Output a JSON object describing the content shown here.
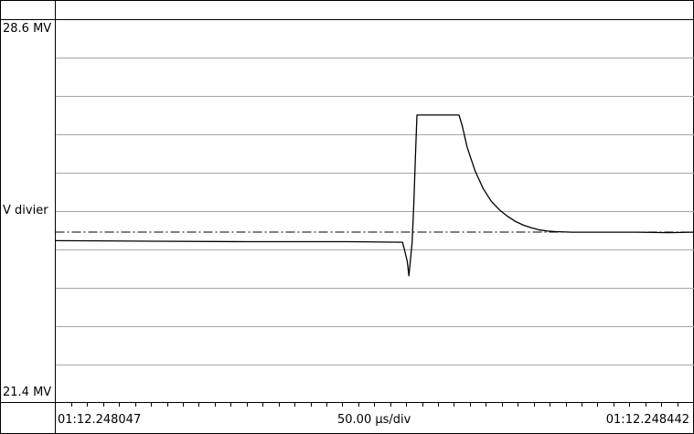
{
  "chart_data": {
    "type": "line",
    "y_axis": {
      "top_label": "28.6 MV",
      "center_label": "V divier",
      "bottom_label": "21.4 MV",
      "range": [
        21.4,
        28.6
      ],
      "unit": "MV",
      "divisions": 10
    },
    "x_axis": {
      "start_label": "01:12.248047",
      "scale_label": "50.00 µs/div",
      "end_label": "01:12.248442",
      "range_us": [
        0,
        395
      ],
      "major_divisions": 8,
      "minor_ticks_per_division": 5
    },
    "grid": true,
    "reference_level": 24.6,
    "series": [
      {
        "points": [
          [
            0,
            24.44
          ],
          [
            60,
            24.43
          ],
          [
            120,
            24.42
          ],
          [
            180,
            24.42
          ],
          [
            215,
            24.41
          ],
          [
            216,
            24.3
          ],
          [
            218,
            24.05
          ],
          [
            219,
            23.78
          ],
          [
            221,
            24.4
          ],
          [
            222,
            25.1
          ],
          [
            223,
            26.0
          ],
          [
            224,
            26.8
          ],
          [
            230,
            26.8
          ],
          [
            250,
            26.8
          ],
          [
            252,
            26.6
          ],
          [
            255,
            26.2
          ],
          [
            260,
            25.75
          ],
          [
            265,
            25.42
          ],
          [
            270,
            25.18
          ],
          [
            275,
            25.02
          ],
          [
            280,
            24.9
          ],
          [
            285,
            24.8
          ],
          [
            290,
            24.73
          ],
          [
            295,
            24.68
          ],
          [
            300,
            24.64
          ],
          [
            305,
            24.62
          ],
          [
            310,
            24.61
          ],
          [
            320,
            24.6
          ],
          [
            340,
            24.6
          ],
          [
            360,
            24.6
          ],
          [
            380,
            24.59
          ],
          [
            395,
            24.6
          ]
        ]
      }
    ]
  },
  "colors": {
    "trace": "#000000",
    "grid": "#a6a6a6",
    "reference": "#000000",
    "frame": "#000000",
    "background": "#ffffff"
  }
}
